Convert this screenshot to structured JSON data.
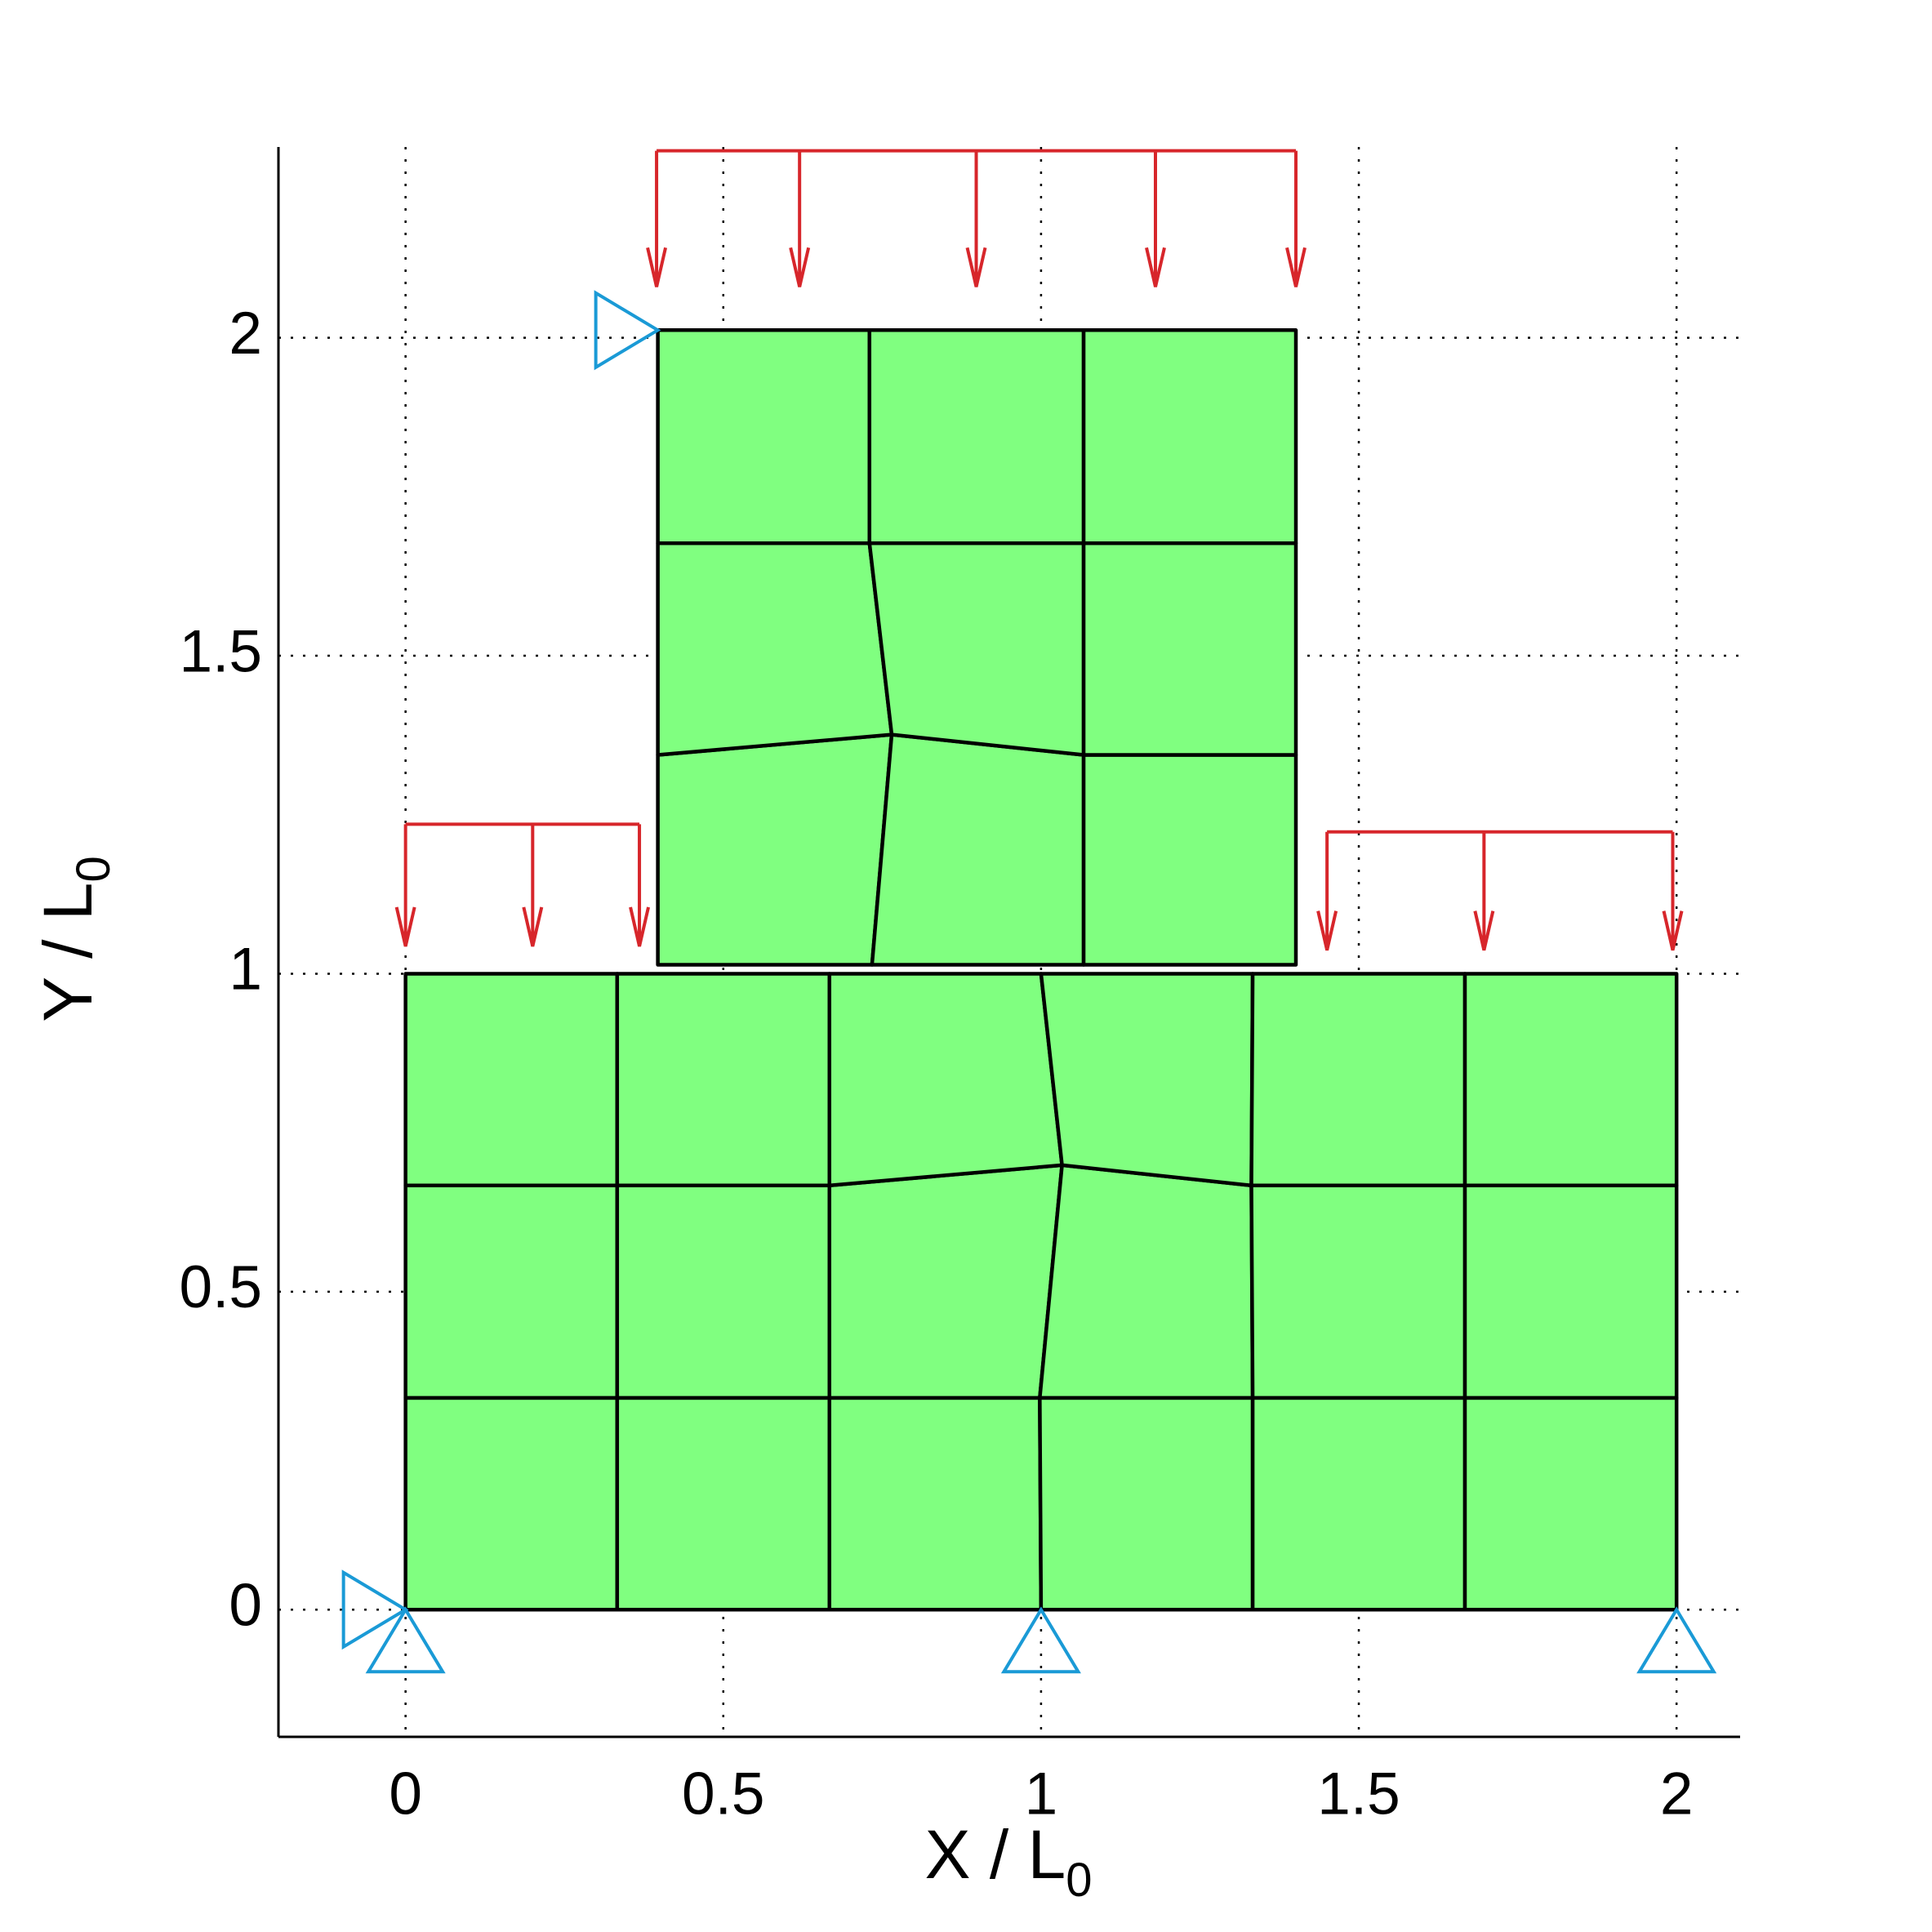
{
  "chart_data": {
    "type": "mesh",
    "xlabel": {
      "text": "X / L",
      "subscript": "0"
    },
    "ylabel": {
      "text": "Y / L",
      "subscript": "0"
    },
    "xlim": [
      -0.2,
      2.1
    ],
    "ylim": [
      -0.2,
      2.3
    ],
    "xticks": [
      0,
      {
        "value": 0.5,
        "label": "0.5"
      },
      1,
      {
        "value": 1.5,
        "label": "1.5"
      },
      2
    ],
    "yticks": [
      0,
      {
        "value": 0.5,
        "label": "0.5"
      },
      1,
      {
        "value": 1.5,
        "label": "1.5"
      },
      2
    ],
    "grid": true,
    "element_color": "#80ff80",
    "blocks": [
      {
        "x": [
          [
            0,
            0.333,
            0.667,
            1.0,
            1.333,
            1.667,
            2.0
          ],
          [
            0,
            0.333,
            0.667,
            0.998,
            1.333,
            1.667,
            2.0
          ],
          [
            0,
            0.333,
            0.667,
            1.033,
            1.331,
            1.667,
            2.0
          ],
          [
            0,
            0.333,
            0.667,
            1.0,
            1.333,
            1.667,
            2.0
          ]
        ],
        "y": [
          [
            0,
            0,
            0,
            0,
            0,
            0,
            0
          ],
          [
            0.333,
            0.333,
            0.333,
            0.333,
            0.333,
            0.333,
            0.333
          ],
          [
            0.667,
            0.667,
            0.667,
            0.699,
            0.667,
            0.667,
            0.667
          ],
          [
            1.0,
            1.0,
            1.0,
            1.0,
            1.0,
            1.0,
            1.0
          ]
        ]
      },
      {
        "x": [
          [
            0.397,
            0.734,
            1.067,
            1.401
          ],
          [
            0.397,
            0.765,
            1.067,
            1.401
          ],
          [
            0.397,
            0.73,
            1.067,
            1.401
          ],
          [
            0.397,
            0.73,
            1.067,
            1.401
          ]
        ],
        "y": [
          [
            1.014,
            1.014,
            1.014,
            1.014
          ],
          [
            1.344,
            1.376,
            1.344,
            1.344
          ],
          [
            1.677,
            1.677,
            1.677,
            1.677
          ],
          [
            2.012,
            2.012,
            2.012,
            2.012
          ]
        ]
      }
    ],
    "load_color": "#d7262b",
    "loads": [
      {
        "x": [
          0.395,
          0.62,
          0.898,
          1.18,
          1.401
        ],
        "y_top": 2.294,
        "y_tip": 2.08
      },
      {
        "x": [
          0,
          0.2,
          0.368
        ],
        "y_top": 1.235,
        "y_tip": 1.043
      },
      {
        "x": [
          1.45,
          1.697,
          1.994
        ],
        "y_top": 1.223,
        "y_tip": 1.037
      }
    ],
    "support_color": "#1a9ad6",
    "supports": [
      {
        "x": 0,
        "y": 0,
        "direction": "up"
      },
      {
        "x": 0,
        "y": 0,
        "direction": "right"
      },
      {
        "x": 1,
        "y": 0,
        "direction": "up"
      },
      {
        "x": 2,
        "y": 0,
        "direction": "up"
      },
      {
        "x": 0.397,
        "y": 2.012,
        "direction": "right"
      }
    ]
  }
}
